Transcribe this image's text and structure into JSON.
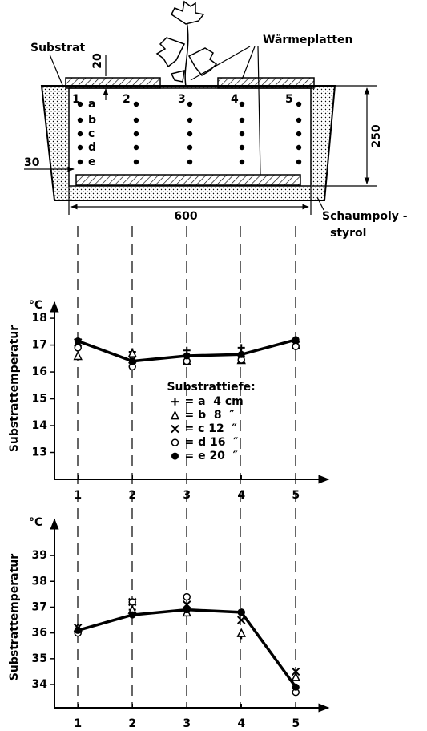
{
  "diagram": {
    "substrate_label": "Substrat",
    "plates_label": "Wärmeplatten",
    "dim_top": "20",
    "dim_height": "250",
    "dim_side": "30",
    "dim_width": "600",
    "insulation_label": [
      "Schaumpoly -",
      "styrol"
    ],
    "positions": [
      "1",
      "2",
      "3",
      "4",
      "5"
    ],
    "depths": [
      "a",
      "b",
      "c",
      "d",
      "e"
    ]
  },
  "chart_data": [
    {
      "type": "line",
      "ylabel": "Substrattemperatur",
      "y_unit": "°C",
      "x": [
        1,
        2,
        3,
        4,
        5
      ],
      "xlim": [
        0.57,
        5.6
      ],
      "xticks": [
        1,
        2,
        3,
        4,
        5
      ],
      "ylim": [
        12,
        18.6
      ],
      "yticks": [
        13,
        14,
        15,
        16,
        17,
        18
      ],
      "legend": "center",
      "legend_title": "Substrattiefe:",
      "series": [
        {
          "name": "= a  4 cm",
          "marker": "plus",
          "color": "#000000",
          "values": [
            16.95,
            16.75,
            16.8,
            16.9,
            17.0
          ]
        },
        {
          "name": "= b  8  ″",
          "marker": "triangle",
          "color": "#000000",
          "values": [
            16.6,
            16.7,
            16.4,
            16.45,
            17.0
          ]
        },
        {
          "name": "= c 12  ″",
          "marker": "x",
          "color": "#000000",
          "values": [
            17.1,
            16.45,
            16.5,
            16.45,
            17.0
          ]
        },
        {
          "name": "= d 16  ″",
          "marker": "circle-open",
          "color": "#000000",
          "values": [
            16.9,
            16.2,
            16.4,
            16.45,
            16.95
          ]
        },
        {
          "name": "= e 20  ″",
          "marker": "circle",
          "color": "#000000",
          "line": true,
          "values": [
            17.15,
            16.4,
            16.6,
            16.65,
            17.2
          ]
        }
      ]
    },
    {
      "type": "line",
      "ylabel": "Substrattemperatur",
      "y_unit": "°C",
      "x": [
        1,
        2,
        3,
        4,
        5
      ],
      "xlim": [
        0.57,
        5.6
      ],
      "xticks": [
        1,
        2,
        3,
        4,
        5
      ],
      "ylim": [
        33.1,
        40.4
      ],
      "yticks": [
        34,
        35,
        36,
        37,
        38,
        39
      ],
      "series": [
        {
          "marker": "plus",
          "color": "#000000",
          "values": [
            36.0,
            36.9,
            36.9,
            35.9,
            33.9
          ]
        },
        {
          "marker": "triangle",
          "color": "#000000",
          "values": [
            36.2,
            36.9,
            36.8,
            36.0,
            34.3
          ]
        },
        {
          "marker": "x",
          "color": "#000000",
          "values": [
            36.2,
            37.2,
            37.1,
            36.5,
            34.5
          ]
        },
        {
          "marker": "circle-open",
          "color": "#000000",
          "values": [
            36.0,
            37.2,
            37.4,
            36.8,
            33.7
          ]
        },
        {
          "marker": "circle",
          "color": "#000000",
          "line": true,
          "values": [
            36.1,
            36.7,
            36.9,
            36.8,
            33.9
          ]
        }
      ]
    }
  ]
}
